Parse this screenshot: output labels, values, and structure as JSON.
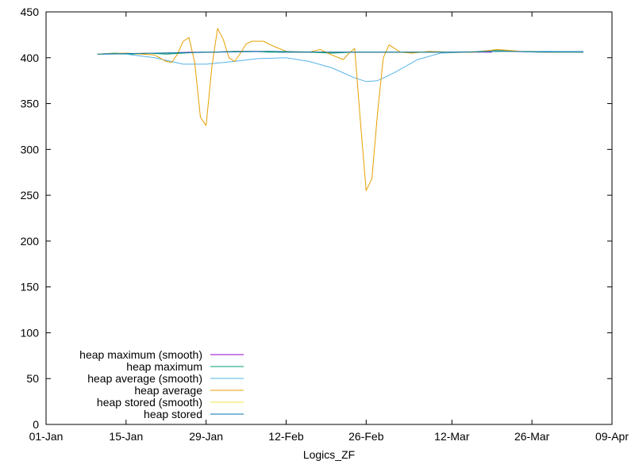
{
  "chart_data": {
    "type": "line",
    "title": "",
    "xlabel": "Logics_ZF",
    "ylabel": "",
    "ylim": [
      0,
      450
    ],
    "yticks": [
      0,
      50,
      100,
      150,
      200,
      250,
      300,
      350,
      400,
      450
    ],
    "xlim": [
      "2024-01-01",
      "2024-04-09"
    ],
    "xticks": [
      {
        "date": "2024-01-01",
        "label": "01-Jan"
      },
      {
        "date": "2024-01-15",
        "label": "15-Jan"
      },
      {
        "date": "2024-01-29",
        "label": "29-Jan"
      },
      {
        "date": "2024-02-12",
        "label": "12-Feb"
      },
      {
        "date": "2024-02-26",
        "label": "26-Feb"
      },
      {
        "date": "2024-03-12",
        "label": "12-Mar"
      },
      {
        "date": "2024-03-26",
        "label": "26-Mar"
      },
      {
        "date": "2024-04-09",
        "label": "09-Apr"
      }
    ],
    "grid": false,
    "legend_position": "bottom-left",
    "series": [
      {
        "name": "heap maximum (smooth)",
        "color": "#9400d3",
        "points": [
          [
            "2024-01-18",
            405
          ],
          [
            "2024-01-22",
            405
          ],
          [
            "2024-01-26",
            406
          ],
          [
            "2024-01-30",
            406
          ],
          [
            "2024-02-03",
            407
          ],
          [
            "2024-02-07",
            407
          ],
          [
            "2024-02-11",
            406
          ],
          [
            "2024-02-15",
            406
          ],
          [
            "2024-02-19",
            406
          ],
          [
            "2024-02-23",
            406
          ],
          [
            "2024-02-27",
            406
          ],
          [
            "2024-03-03",
            406
          ],
          [
            "2024-03-07",
            406
          ],
          [
            "2024-03-11",
            406
          ],
          [
            "2024-03-15",
            406
          ],
          [
            "2024-03-19",
            406
          ]
        ]
      },
      {
        "name": "heap maximum",
        "color": "#009e73",
        "points": [
          [
            "2024-01-10",
            404
          ],
          [
            "2024-01-13",
            405
          ],
          [
            "2024-01-16",
            404
          ],
          [
            "2024-01-19",
            405
          ],
          [
            "2024-01-22",
            404
          ],
          [
            "2024-01-25",
            405
          ],
          [
            "2024-01-28",
            406
          ],
          [
            "2024-01-31",
            406
          ],
          [
            "2024-02-03",
            407
          ],
          [
            "2024-02-06",
            407
          ],
          [
            "2024-02-09",
            406
          ],
          [
            "2024-02-12",
            406
          ],
          [
            "2024-02-16",
            406
          ],
          [
            "2024-02-20",
            405
          ],
          [
            "2024-02-24",
            406
          ],
          [
            "2024-02-28",
            406
          ],
          [
            "2024-03-03",
            406
          ],
          [
            "2024-03-07",
            406
          ],
          [
            "2024-03-11",
            406
          ],
          [
            "2024-03-15",
            406
          ],
          [
            "2024-03-19",
            408
          ],
          [
            "2024-03-23",
            407
          ],
          [
            "2024-03-27",
            406
          ],
          [
            "2024-03-31",
            406
          ],
          [
            "2024-04-04",
            406
          ]
        ]
      },
      {
        "name": "heap average (smooth)",
        "color": "#56b4e9",
        "points": [
          [
            "2024-01-10",
            404
          ],
          [
            "2024-01-15",
            404
          ],
          [
            "2024-01-20",
            400
          ],
          [
            "2024-01-25",
            393
          ],
          [
            "2024-01-29",
            393
          ],
          [
            "2024-02-03",
            396
          ],
          [
            "2024-02-07",
            399
          ],
          [
            "2024-02-12",
            400
          ],
          [
            "2024-02-16",
            396
          ],
          [
            "2024-02-20",
            389
          ],
          [
            "2024-02-24",
            378
          ],
          [
            "2024-02-26",
            374
          ],
          [
            "2024-02-28",
            375
          ],
          [
            "2024-03-02",
            384
          ],
          [
            "2024-03-06",
            398
          ],
          [
            "2024-03-10",
            405
          ],
          [
            "2024-03-15",
            406
          ],
          [
            "2024-03-20",
            407
          ],
          [
            "2024-03-25",
            407
          ],
          [
            "2024-03-30",
            407
          ],
          [
            "2024-04-04",
            407
          ]
        ]
      },
      {
        "name": "heap average",
        "color": "#e69f00",
        "points": [
          [
            "2024-01-10",
            404
          ],
          [
            "2024-01-15",
            405
          ],
          [
            "2024-01-20",
            403
          ],
          [
            "2024-01-22",
            396
          ],
          [
            "2024-01-23",
            395
          ],
          [
            "2024-01-24",
            404
          ],
          [
            "2024-01-25",
            418
          ],
          [
            "2024-01-26",
            422
          ],
          [
            "2024-01-27",
            395
          ],
          [
            "2024-01-28",
            335
          ],
          [
            "2024-01-29",
            326
          ],
          [
            "2024-01-30",
            390
          ],
          [
            "2024-01-31",
            432
          ],
          [
            "2024-02-01",
            420
          ],
          [
            "2024-02-02",
            400
          ],
          [
            "2024-02-03",
            396
          ],
          [
            "2024-02-04",
            405
          ],
          [
            "2024-02-05",
            415
          ],
          [
            "2024-02-06",
            418
          ],
          [
            "2024-02-08",
            418
          ],
          [
            "2024-02-10",
            412
          ],
          [
            "2024-02-12",
            407
          ],
          [
            "2024-02-16",
            406
          ],
          [
            "2024-02-18",
            409
          ],
          [
            "2024-02-20",
            403
          ],
          [
            "2024-02-22",
            398
          ],
          [
            "2024-02-23",
            405
          ],
          [
            "2024-02-24",
            410
          ],
          [
            "2024-02-25",
            330
          ],
          [
            "2024-02-26",
            255
          ],
          [
            "2024-02-27",
            268
          ],
          [
            "2024-02-28",
            340
          ],
          [
            "2024-02-29",
            400
          ],
          [
            "2024-03-01",
            414
          ],
          [
            "2024-03-02",
            410
          ],
          [
            "2024-03-03",
            406
          ],
          [
            "2024-03-05",
            405
          ],
          [
            "2024-03-08",
            407
          ],
          [
            "2024-03-12",
            406
          ],
          [
            "2024-03-16",
            406
          ],
          [
            "2024-03-20",
            409
          ],
          [
            "2024-03-24",
            407
          ],
          [
            "2024-03-28",
            406
          ],
          [
            "2024-04-01",
            406
          ],
          [
            "2024-04-04",
            406
          ]
        ]
      },
      {
        "name": "heap stored (smooth)",
        "color": "#f0e442",
        "points": [
          [
            "2024-01-10",
            404
          ],
          [
            "2024-01-20",
            405
          ],
          [
            "2024-01-30",
            406
          ],
          [
            "2024-02-09",
            407
          ],
          [
            "2024-02-19",
            406
          ],
          [
            "2024-03-01",
            406
          ],
          [
            "2024-03-11",
            406
          ],
          [
            "2024-03-21",
            407
          ],
          [
            "2024-03-31",
            406
          ],
          [
            "2024-04-04",
            406
          ]
        ]
      },
      {
        "name": "heap stored",
        "color": "#0072b2",
        "points": [
          [
            "2024-01-10",
            404
          ],
          [
            "2024-01-20",
            405
          ],
          [
            "2024-01-30",
            406
          ],
          [
            "2024-02-09",
            407
          ],
          [
            "2024-02-19",
            406
          ],
          [
            "2024-03-01",
            406
          ],
          [
            "2024-03-11",
            406
          ],
          [
            "2024-03-21",
            407
          ],
          [
            "2024-03-31",
            406
          ],
          [
            "2024-04-04",
            406
          ]
        ]
      }
    ]
  }
}
